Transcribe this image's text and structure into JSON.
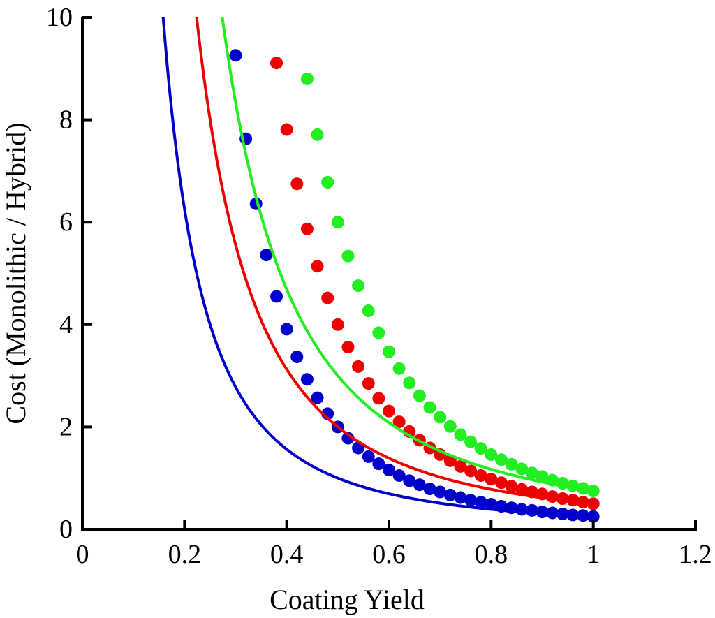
{
  "chart_data": {
    "type": "line",
    "title": "",
    "xlabel": "Coating Yield",
    "ylabel": "Cost (Monolithic / Hybrid)",
    "xlim": [
      0,
      1.2
    ],
    "ylim": [
      0,
      10
    ],
    "xticks": [
      0,
      0.2,
      0.4,
      0.6,
      0.8,
      1,
      1.2
    ],
    "xtick_labels": [
      "0",
      "0.2",
      "0.4",
      "0.6",
      "0.8",
      "1",
      "1.2"
    ],
    "yticks": [
      0,
      2,
      4,
      6,
      8,
      10
    ],
    "ytick_labels": [
      "0",
      "2",
      "4",
      "6",
      "8",
      "10"
    ],
    "grid": false,
    "legend": "none",
    "x": [
      0.3,
      0.32,
      0.34,
      0.36,
      0.38,
      0.4,
      0.42,
      0.44,
      0.46,
      0.48,
      0.5,
      0.52,
      0.54,
      0.56,
      0.58,
      0.6,
      0.62,
      0.64,
      0.66,
      0.68,
      0.7,
      0.72,
      0.74,
      0.76,
      0.78,
      0.8,
      0.82,
      0.84,
      0.86,
      0.88,
      0.9,
      0.92,
      0.94,
      0.96,
      0.98,
      1.0
    ],
    "series": [
      {
        "name": "blue",
        "color": "#0000cc",
        "values": [
          9.26,
          7.63,
          6.36,
          5.36,
          4.55,
          3.91,
          3.37,
          2.93,
          2.57,
          2.26,
          2.0,
          1.78,
          1.59,
          1.42,
          1.28,
          1.16,
          1.05,
          0.95,
          0.87,
          0.79,
          0.73,
          0.67,
          0.62,
          0.57,
          0.53,
          0.49,
          0.45,
          0.42,
          0.39,
          0.37,
          0.34,
          0.32,
          0.3,
          0.28,
          0.27,
          0.25
        ]
      },
      {
        "name": "red",
        "color": "#ee0000",
        "values": [
          null,
          null,
          null,
          null,
          9.11,
          7.81,
          6.75,
          5.87,
          5.14,
          4.52,
          4.0,
          3.56,
          3.18,
          2.85,
          2.56,
          2.31,
          2.1,
          1.91,
          1.74,
          1.59,
          1.46,
          1.34,
          1.23,
          1.14,
          1.05,
          0.98,
          0.91,
          0.84,
          0.78,
          0.73,
          0.69,
          0.64,
          0.6,
          0.57,
          0.53,
          0.5
        ]
      },
      {
        "name": "green",
        "color": "#22ee22",
        "values": [
          null,
          null,
          null,
          null,
          null,
          null,
          null,
          8.8,
          7.71,
          6.78,
          6.0,
          5.34,
          4.76,
          4.27,
          3.84,
          3.47,
          3.14,
          2.86,
          2.61,
          2.38,
          2.19,
          2.01,
          1.85,
          1.71,
          1.58,
          1.46,
          1.36,
          1.27,
          1.18,
          1.1,
          1.03,
          0.96,
          0.9,
          0.85,
          0.8,
          0.75
        ]
      }
    ]
  }
}
